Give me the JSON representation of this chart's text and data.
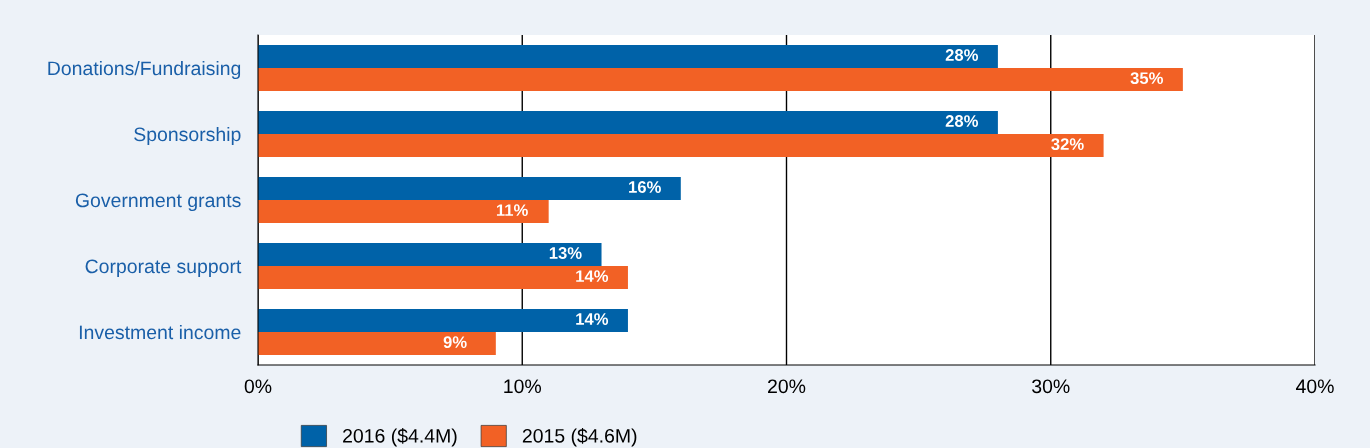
{
  "chart_data": {
    "type": "bar",
    "orientation": "horizontal",
    "categories": [
      "Donations/Fundraising",
      "Sponsorship",
      "Government grants",
      "Corporate support",
      "Investment income"
    ],
    "series": [
      {
        "name": "2016 ($4.4M)",
        "color": "#0062a8",
        "values": [
          28,
          28,
          16,
          13,
          14
        ],
        "value_labels": [
          "28%",
          "28%",
          "16%",
          "13%",
          "14%"
        ]
      },
      {
        "name": "2015 ($4.6M)",
        "color": "#f26125",
        "values": [
          35,
          32,
          11,
          14,
          9
        ],
        "value_labels": [
          "35%",
          "32%",
          "11%",
          "14%",
          "9%"
        ]
      }
    ],
    "xlim": [
      0,
      40
    ],
    "xticks": [
      {
        "value": 0,
        "label": "0%"
      },
      {
        "value": 10,
        "label": "10%"
      },
      {
        "value": 20,
        "label": "20%"
      },
      {
        "value": 30,
        "label": "30%"
      },
      {
        "value": 40,
        "label": "40%"
      }
    ],
    "grid": "x",
    "legend": "bottom"
  }
}
